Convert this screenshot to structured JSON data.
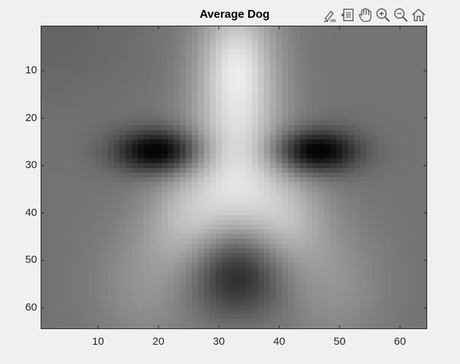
{
  "figure": {
    "title": "Average Dog"
  },
  "toolbar": {
    "items": [
      {
        "icon": "brush-icon",
        "tooltip": ""
      },
      {
        "icon": "datatip-icon",
        "tooltip": ""
      },
      {
        "icon": "pan-hand-icon",
        "tooltip": ""
      },
      {
        "icon": "zoom-in-icon",
        "tooltip": ""
      },
      {
        "icon": "zoom-out-icon",
        "tooltip": ""
      },
      {
        "icon": "home-icon",
        "tooltip": ""
      }
    ]
  },
  "axes": {
    "xlim": [
      0.5,
      64.5
    ],
    "ylim": [
      0.5,
      64.5
    ],
    "xticks": [
      "10",
      "20",
      "30",
      "40",
      "50",
      "60"
    ],
    "xtick_values": [
      10,
      20,
      30,
      40,
      50,
      60
    ],
    "yticks": [
      "10",
      "20",
      "30",
      "40",
      "50",
      "60"
    ],
    "ytick_values": [
      10,
      20,
      30,
      40,
      50,
      60
    ],
    "colormap": "gray",
    "image_size": [
      64,
      64
    ]
  },
  "chart_data": {
    "type": "heatmap",
    "title": "Average Dog",
    "xlabel": "",
    "ylabel": "",
    "xlim": [
      0.5,
      64.5
    ],
    "ylim": [
      0.5,
      64.5
    ],
    "y_direction": "reverse",
    "colormap": "gray",
    "features": [
      {
        "name": "left-eye",
        "x": 20,
        "y": 27,
        "intensity": "dark"
      },
      {
        "name": "right-eye",
        "x": 46,
        "y": 27,
        "intensity": "dark"
      },
      {
        "name": "nose",
        "x": 33,
        "y": 53,
        "intensity": "dark"
      },
      {
        "name": "muzzle-bridge",
        "x": 33,
        "y": 30,
        "intensity": "bright"
      }
    ]
  }
}
